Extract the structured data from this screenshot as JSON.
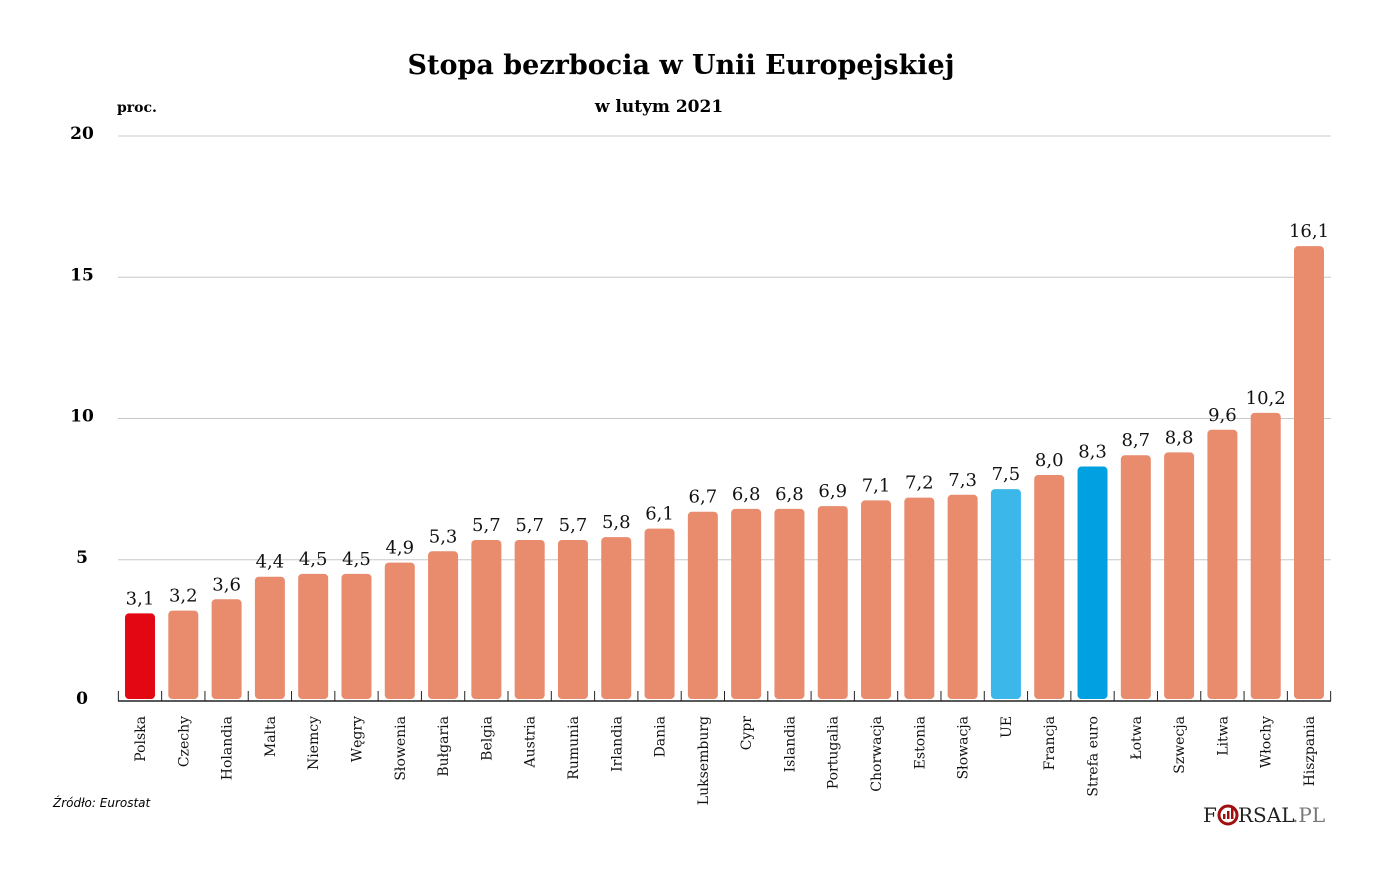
{
  "chart_data": {
    "type": "bar",
    "title": "Stopa bezrbocia w Unii Europejskiej",
    "subtitle": "w lutym 2021",
    "ylabel": "proc.",
    "xlabel": "",
    "ylim": [
      0,
      20
    ],
    "yticks": [
      0,
      5,
      10,
      15,
      20
    ],
    "grid": true,
    "categories": [
      "Polska",
      "Czechy",
      "Holandia",
      "Malta",
      "Niemcy",
      "Węgry",
      "Słowenia",
      "Bułgaria",
      "Belgia",
      "Austria",
      "Rumunia",
      "Irlandia",
      "Dania",
      "Luksemburg",
      "Cypr",
      "Islandia",
      "Portugalia",
      "Chorwacja",
      "Estonia",
      "Słowacja",
      "UE",
      "Francja",
      "Strefa euro",
      "Łotwa",
      "Szwecja",
      "Litwa",
      "Włochy",
      "Hiszpania"
    ],
    "values": [
      3.1,
      3.2,
      3.6,
      4.4,
      4.5,
      4.5,
      4.9,
      5.3,
      5.7,
      5.7,
      5.7,
      5.8,
      6.1,
      6.7,
      6.8,
      6.8,
      6.9,
      7.1,
      7.2,
      7.3,
      7.5,
      8.0,
      8.3,
      8.7,
      8.8,
      9.6,
      10.2,
      16.1
    ],
    "colors": {
      "default": "#E98B6D",
      "Polska": "#E30613",
      "UE": "#3CB7EA",
      "Strefa euro": "#00A0E1"
    },
    "source": "Źródło:  Eurostat"
  },
  "logo": "FORSAL.PL"
}
